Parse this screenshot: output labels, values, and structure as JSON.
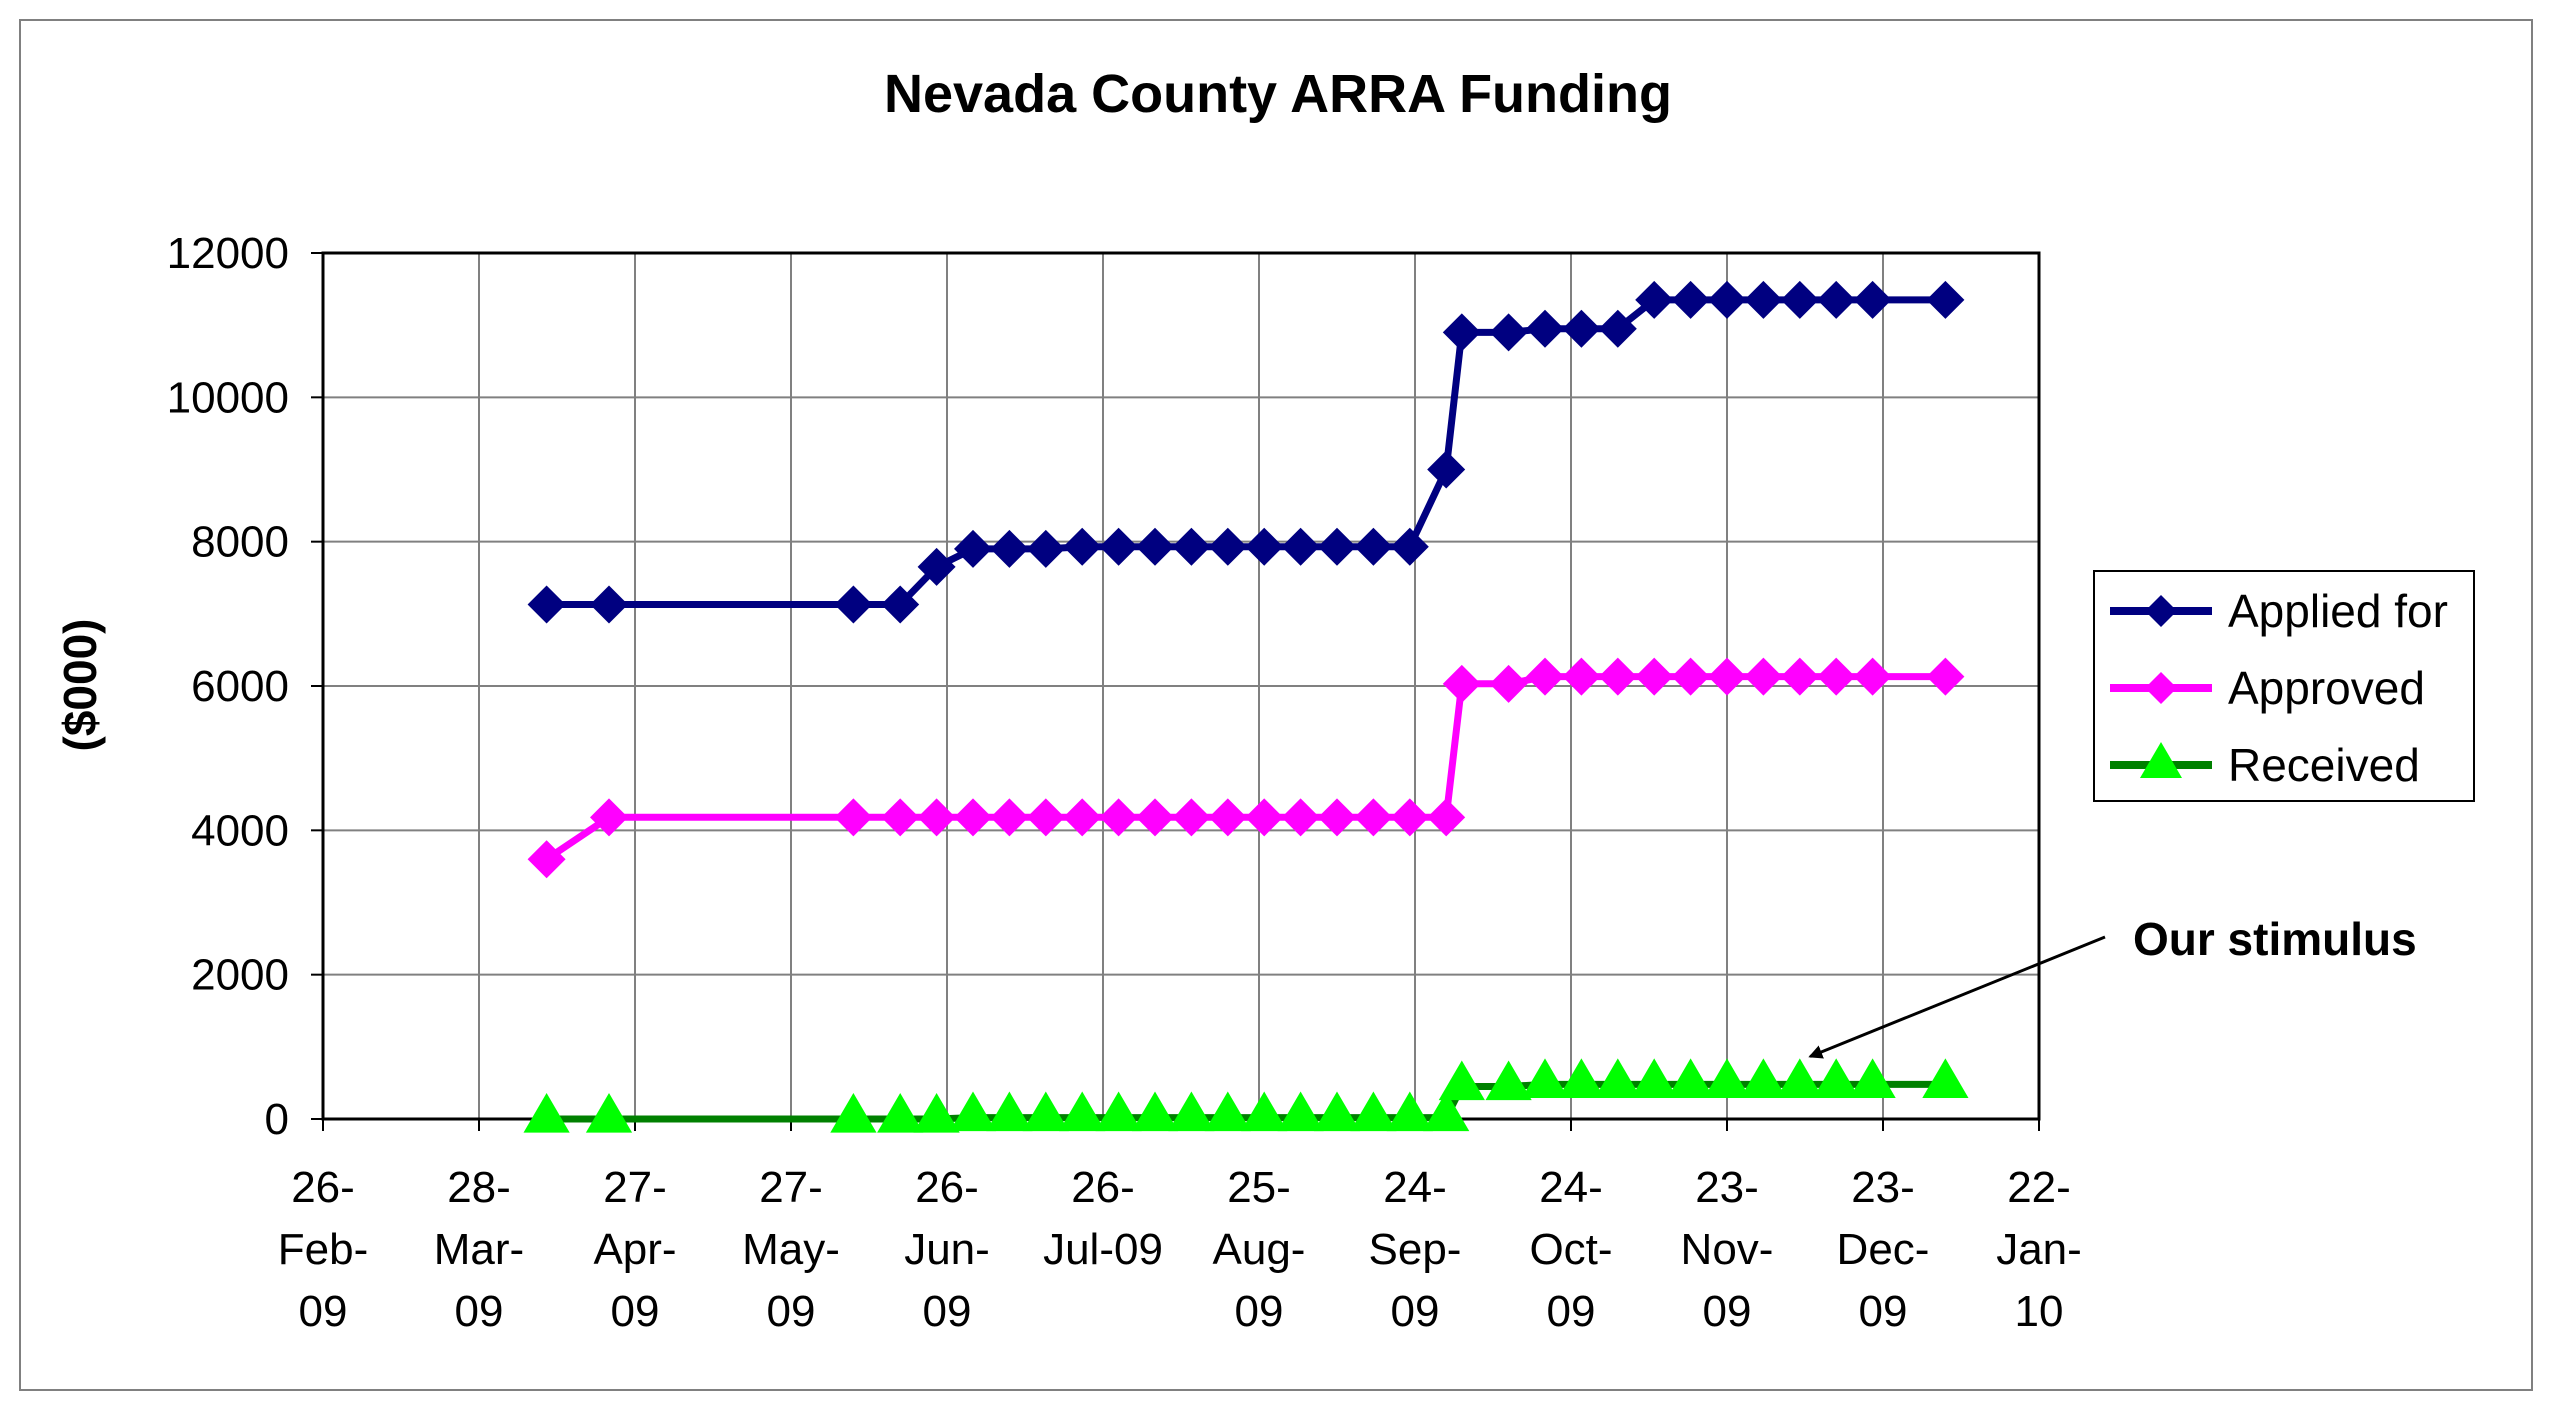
{
  "chart_data": {
    "type": "line",
    "title": "Nevada County ARRA Funding",
    "ylabel": "($000)",
    "xlabel": "",
    "x_axis": "date",
    "xlim": [
      "2009-02-26",
      "2010-01-22"
    ],
    "ylim": [
      0,
      12000
    ],
    "grid": true,
    "legend_position": "right",
    "x_tick_dates": [
      "2009-02-26",
      "2009-03-28",
      "2009-04-27",
      "2009-05-27",
      "2009-06-26",
      "2009-07-26",
      "2009-08-25",
      "2009-09-24",
      "2009-10-24",
      "2009-11-23",
      "2009-12-23",
      "2010-01-22"
    ],
    "x_tick_labels": [
      [
        "26-",
        "Feb-",
        "09"
      ],
      [
        "28-",
        "Mar-",
        "09"
      ],
      [
        "27-",
        "Apr-",
        "09"
      ],
      [
        "27-",
        "May-",
        "09"
      ],
      [
        "26-",
        "Jun-",
        "09"
      ],
      [
        "26-",
        "Jul-09"
      ],
      [
        "25-",
        "Aug-",
        "09"
      ],
      [
        "24-",
        "Sep-",
        "09"
      ],
      [
        "24-",
        "Oct-",
        "09"
      ],
      [
        "23-",
        "Nov-",
        "09"
      ],
      [
        "23-",
        "Dec-",
        "09"
      ],
      [
        "22-",
        "Jan-",
        "10"
      ]
    ],
    "y_ticks": [
      0,
      2000,
      4000,
      6000,
      8000,
      10000,
      12000
    ],
    "x": [
      "2009-04-10",
      "2009-04-22",
      "2009-06-08",
      "2009-06-17",
      "2009-06-24",
      "2009-07-01",
      "2009-07-08",
      "2009-07-15",
      "2009-07-22",
      "2009-07-29",
      "2009-08-05",
      "2009-08-12",
      "2009-08-19",
      "2009-08-26",
      "2009-09-02",
      "2009-09-09",
      "2009-09-16",
      "2009-09-23",
      "2009-09-30",
      "2009-10-03",
      "2009-10-12",
      "2009-10-19",
      "2009-10-26",
      "2009-11-02",
      "2009-11-09",
      "2009-11-16",
      "2009-11-23",
      "2009-11-30",
      "2009-12-07",
      "2009-12-14",
      "2009-12-21",
      "2010-01-04"
    ],
    "series": [
      {
        "name": "Applied for",
        "color": "#000080",
        "marker": "diamond",
        "values": [
          7130,
          7130,
          7130,
          7130,
          7650,
          7900,
          7900,
          7900,
          7930,
          7930,
          7930,
          7930,
          7930,
          7930,
          7930,
          7930,
          7930,
          7930,
          9000,
          10900,
          10900,
          10950,
          10950,
          10950,
          11350,
          11350,
          11350,
          11350,
          11350,
          11350,
          11350,
          11350
        ]
      },
      {
        "name": "Approved",
        "color": "#FF00FF",
        "marker": "diamond",
        "values": [
          3600,
          4180,
          4180,
          4180,
          4180,
          4180,
          4180,
          4180,
          4180,
          4180,
          4180,
          4180,
          4180,
          4180,
          4180,
          4180,
          4180,
          4180,
          4180,
          6030,
          6030,
          6130,
          6130,
          6130,
          6130,
          6130,
          6130,
          6130,
          6130,
          6130,
          6130,
          6130
        ]
      },
      {
        "name": "Received",
        "color": "#008000",
        "marker_color": "#00FF00",
        "marker": "triangle",
        "values": [
          0,
          0,
          0,
          0,
          0,
          20,
          20,
          20,
          20,
          20,
          20,
          20,
          20,
          20,
          20,
          20,
          20,
          20,
          20,
          450,
          450,
          480,
          480,
          480,
          480,
          480,
          480,
          480,
          480,
          480,
          480,
          480
        ]
      }
    ],
    "annotations": [
      {
        "text": "Our stimulus",
        "arrow_to": {
          "x": "2009-12-09",
          "y": 700
        }
      }
    ]
  }
}
